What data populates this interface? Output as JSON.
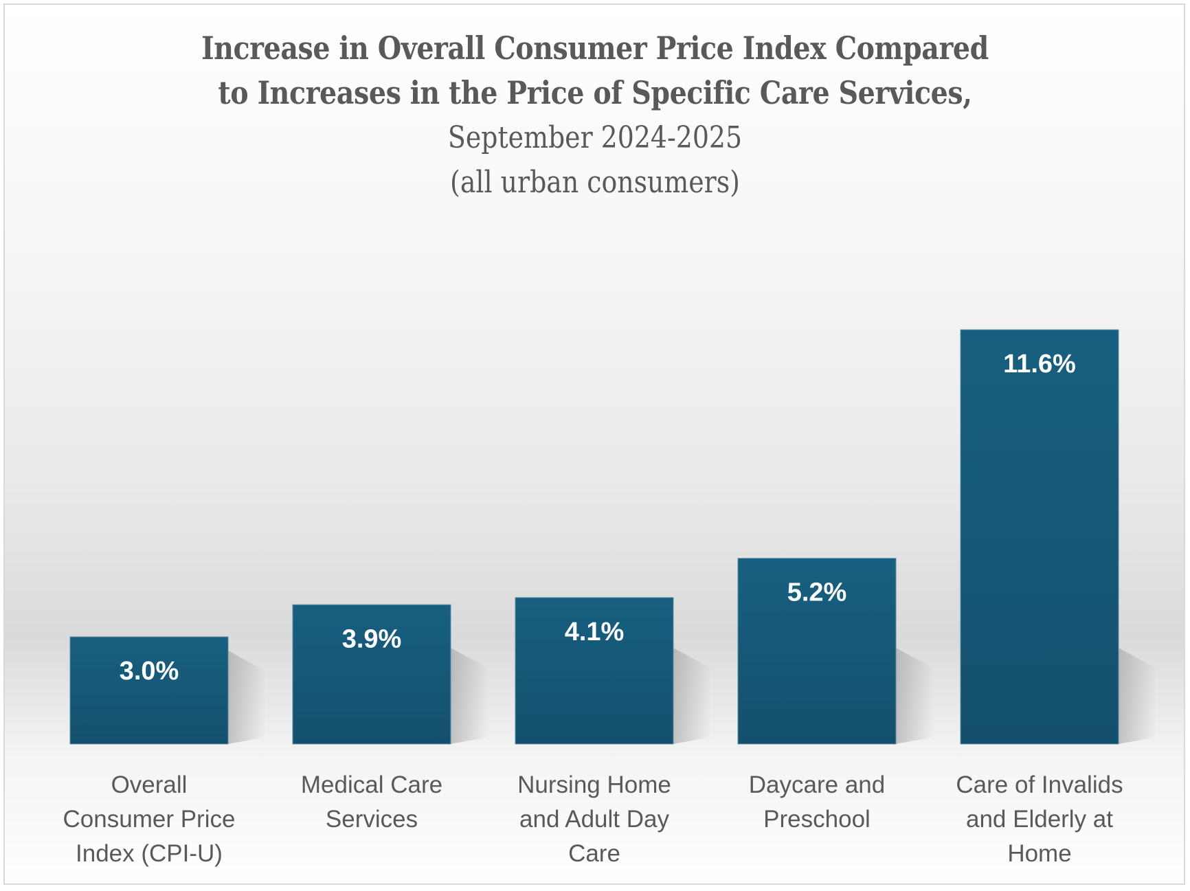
{
  "chart_data": {
    "type": "bar",
    "title": "Increase in Overall Consumer Price Index Compared to Increases in the Price of Specific Care Services,",
    "title_lines": [
      "Increase in Overall Consumer Price Index Compared",
      "to Increases in the Price of Specific Care Services,"
    ],
    "subtitle_lines": [
      "September 2024-2025",
      "(all urban consumers)"
    ],
    "categories": [
      "Overall Consumer Price Index (CPI-U)",
      "Medical Care Services",
      "Nursing Home and Adult Day Care",
      "Daycare and Preschool",
      "Care of Invalids and Elderly at Home"
    ],
    "category_label_lines": [
      [
        "Overall",
        "Consumer Price",
        "Index (CPI-U)"
      ],
      [
        "Medical Care",
        "Services"
      ],
      [
        "Nursing Home",
        "and Adult Day",
        "Care"
      ],
      [
        "Daycare and",
        "Preschool"
      ],
      [
        "Care of Invalids",
        "and Elderly at",
        "Home"
      ]
    ],
    "values": [
      3.0,
      3.9,
      4.1,
      5.2,
      11.6
    ],
    "data_labels": [
      "3.0%",
      "3.9%",
      "4.1%",
      "5.2%",
      "11.6%"
    ],
    "unit": "%",
    "xlabel": "",
    "ylabel": "",
    "ylim": [
      0,
      11.6
    ],
    "grid": false,
    "legend": "none",
    "y_axis_visible": false,
    "bar_color": "#175f80",
    "bar_color_bottom": "#14506d"
  }
}
